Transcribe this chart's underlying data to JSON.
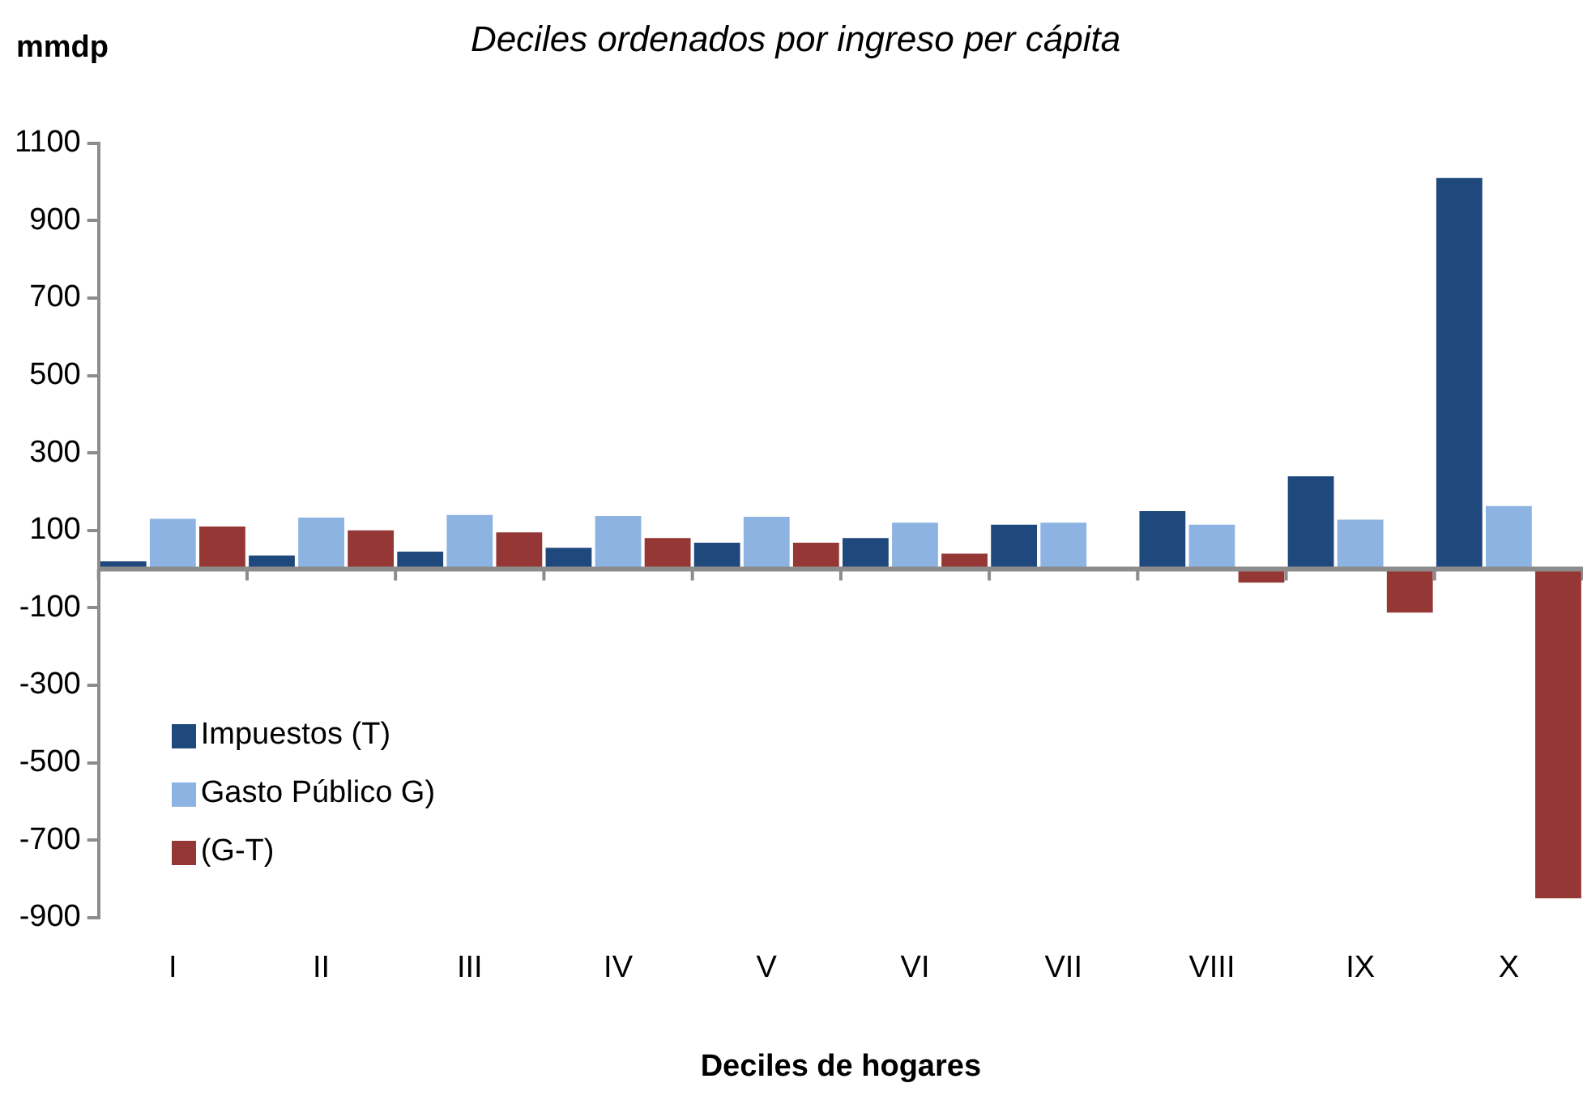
{
  "chart_data": {
    "type": "bar",
    "title": "Deciles ordenados por ingreso per cápita",
    "xlabel": "Deciles de hogares",
    "ylabel": "mmdp",
    "categories": [
      "I",
      "II",
      "III",
      "IV",
      "V",
      "VI",
      "VII",
      "VIII",
      "IX",
      "X"
    ],
    "series": [
      {
        "name": "Impuestos (T)",
        "color": "#1f497d",
        "values": [
          20,
          35,
          45,
          55,
          68,
          80,
          115,
          150,
          240,
          1010
        ]
      },
      {
        "name": "Gasto Público G)",
        "color": "#8db3e2",
        "values": [
          130,
          133,
          140,
          137,
          135,
          120,
          120,
          115,
          128,
          163
        ]
      },
      {
        "name": "(G-T)",
        "color": "#953735",
        "values": [
          110,
          100,
          95,
          80,
          68,
          40,
          5,
          -35,
          -112,
          -850
        ]
      }
    ],
    "ylim": [
      -900,
      1100
    ],
    "yticks": [
      -900,
      -700,
      -500,
      -300,
      -100,
      100,
      300,
      500,
      700,
      900,
      1100
    ],
    "grid": false,
    "legend": "bottom left"
  }
}
